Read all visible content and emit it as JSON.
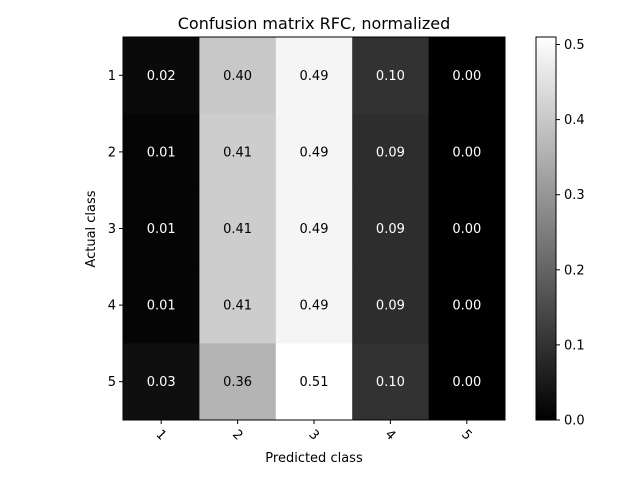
{
  "chart_data": {
    "type": "heatmap",
    "title": "Confusion matrix RFC, normalized",
    "xlabel": "Predicted class",
    "ylabel": "Actual class",
    "x_categories": [
      "1",
      "2",
      "3",
      "4",
      "5"
    ],
    "y_categories": [
      "1",
      "2",
      "3",
      "4",
      "5"
    ],
    "values": [
      [
        0.02,
        0.4,
        0.49,
        0.1,
        0.0
      ],
      [
        0.01,
        0.41,
        0.49,
        0.09,
        0.0
      ],
      [
        0.01,
        0.41,
        0.49,
        0.09,
        0.0
      ],
      [
        0.01,
        0.41,
        0.49,
        0.09,
        0.0
      ],
      [
        0.03,
        0.36,
        0.51,
        0.1,
        0.0
      ]
    ],
    "value_labels": [
      [
        "0.02",
        "0.40",
        "0.49",
        "0.10",
        "0.00"
      ],
      [
        "0.01",
        "0.41",
        "0.49",
        "0.09",
        "0.00"
      ],
      [
        "0.01",
        "0.41",
        "0.49",
        "0.09",
        "0.00"
      ],
      [
        "0.01",
        "0.41",
        "0.49",
        "0.09",
        "0.00"
      ],
      [
        "0.03",
        "0.36",
        "0.51",
        "0.10",
        "0.00"
      ]
    ],
    "colormap": "gray",
    "color_range": [
      0,
      0.51
    ],
    "colorbar_ticks": [
      "0.0",
      "0.1",
      "0.2",
      "0.3",
      "0.4",
      "0.5"
    ],
    "legend_position": "right"
  }
}
